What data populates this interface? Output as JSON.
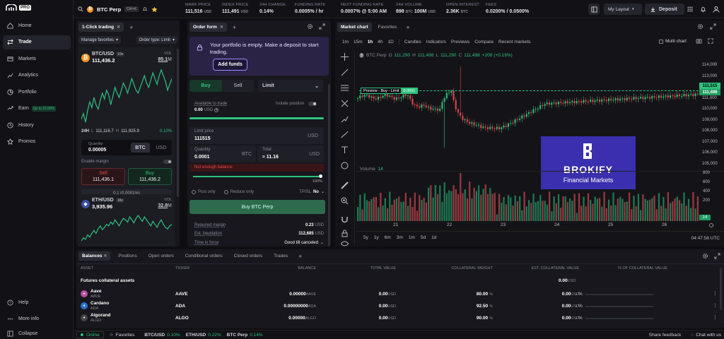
{
  "logo": {
    "badge": "PRO"
  },
  "sidebar": {
    "items": [
      {
        "label": "Home",
        "icon": "home-icon"
      },
      {
        "label": "Trade",
        "icon": "trade-icon"
      },
      {
        "label": "Markets",
        "icon": "markets-icon"
      },
      {
        "label": "Analytics",
        "icon": "analytics-icon"
      },
      {
        "label": "Portfolio",
        "icon": "portfolio-icon"
      },
      {
        "label": "Earn",
        "icon": "earn-icon",
        "badge": "Up to 22.00%"
      },
      {
        "label": "History",
        "icon": "history-icon"
      },
      {
        "label": "Promos",
        "icon": "promos-icon"
      }
    ],
    "bottom": [
      {
        "label": "Help"
      },
      {
        "label": "More info"
      },
      {
        "label": "Collapse"
      }
    ]
  },
  "topbar": {
    "search_label": "BTC Perp",
    "shortcut": "Ctrl+K",
    "mark_price": {
      "label": "MARK PRICE",
      "value": "111,516",
      "unit": "USD"
    },
    "index_price": {
      "label": "INDEX PRICE",
      "value": "111,491",
      "unit": "USD"
    },
    "change": {
      "label": "24H CHANGE",
      "value": "0.14%"
    },
    "funding": {
      "label": "FUNDING RATE",
      "value": "0.0005% / hr"
    },
    "next_funding": {
      "label": "NEXT FUNDING RATE",
      "value": "0.0007% @ 5:00 AM"
    },
    "volume": {
      "label": "24H VOLUME",
      "value": "898",
      "unit": "BTC",
      "value2": "100M",
      "unit2": "USD"
    },
    "open_interest": {
      "label": "OPEN INTEREST",
      "value": "2.36K",
      "unit": "BTC"
    },
    "fees": {
      "label": "FEES",
      "value": "0.0200% / 0.0500%"
    },
    "layout_label": "My Layout",
    "deposit_label": "Deposit"
  },
  "one_click": {
    "tab_label": "1-Click trading",
    "manage": "Manage favorites",
    "order_type": "Order type: Limit",
    "markets": [
      {
        "pair": "BTC/USD",
        "lev": "10x",
        "price": "111,436.2",
        "vol_label": "VOL",
        "vol": "85.1",
        "vol_unit": "M",
        "h24_label": "24H",
        "low_label": "L",
        "low": "111,116.7",
        "high_label": "H",
        "high": "111,925.9",
        "change": "0.10%",
        "spark": [
          40,
          44,
          38,
          46,
          52,
          48,
          55,
          50,
          47,
          53,
          58,
          54,
          60,
          57,
          50,
          56,
          62,
          58,
          55,
          60,
          65,
          62,
          58,
          63,
          68,
          64,
          60,
          58,
          62,
          66,
          70,
          65,
          62,
          67,
          72,
          68,
          64,
          70,
          74,
          70,
          66,
          60,
          64,
          68
        ]
      },
      {
        "pair": "ETH/USD",
        "lev": "10x",
        "price": "3,935.96",
        "vol_label": "VOL",
        "vol": "32.8",
        "vol_unit": "M",
        "spark": [
          30,
          34,
          32,
          38,
          35,
          40,
          44,
          40,
          46,
          50,
          45,
          48,
          52,
          50,
          55,
          52,
          58,
          54,
          50,
          56,
          60,
          58,
          55,
          62,
          58,
          54,
          60,
          64,
          60,
          56,
          62,
          58,
          54,
          50,
          56,
          52,
          48,
          54,
          58,
          52,
          48,
          46,
          50,
          52
        ]
      }
    ],
    "quantity_label": "Quantity",
    "quantity": "0.00005",
    "unit_btc": "BTC",
    "unit_usd": "USD",
    "enable_margin": "Enable margin",
    "sell_label": "Sell",
    "sell_price": "111,436.1",
    "buy_label": "Buy",
    "buy_price": "111,436.2",
    "spread": "0.1 (0.0001%)"
  },
  "order_form": {
    "tab_label": "Order form",
    "notice": "Your portfolio is empty. Make a deposit to start trading.",
    "add_funds": "Add funds",
    "buy": "Buy",
    "sell": "Sell",
    "type": "Limit",
    "available_label": "Available to trade",
    "available": "0.00",
    "available_unit": "USD",
    "isolate": "Isolate position",
    "limit_label": "Limit price",
    "limit_value": "111515",
    "limit_unit": "USD",
    "qty_label": "Quantity",
    "qty_value": "0.0001",
    "qty_unit": "BTC",
    "total_label": "Total",
    "total_value": "≈ 11.16",
    "total_unit": "USD",
    "error": "Not enough balance",
    "slider_pct": "100%",
    "post_only": "Post only",
    "reduce_only": "Reduce only",
    "tpsl": "TP/SL",
    "tpsl_val": "No",
    "submit": "Buy BTC Perp",
    "req_margin_label": "Required margin",
    "req_margin": "0.23",
    "req_margin_unit": "USD",
    "liq_label": "Est. liquidation",
    "liq": "112,685",
    "liq_unit": "USD",
    "tif_label": "Time in force",
    "tif": "Good till canceled"
  },
  "chart": {
    "tab_main": "Market chart",
    "tab_fav": "Favorites",
    "intervals": [
      "1m",
      "15m",
      "1h",
      "4h",
      "1D"
    ],
    "tools": [
      "Candles",
      "Indicators",
      "Previews",
      "Compare",
      "Recent markets"
    ],
    "multi": "Multi chart",
    "legend": {
      "symbol": "BTC Perp",
      "o": "O",
      "ov": "111,290",
      "h": "H",
      "hv": "111,498",
      "l": "L",
      "lv": "111,290",
      "c": "C",
      "cv": "111,498",
      "chg": "+208 (+0.19%)"
    },
    "preview_label": "Preview - Buy - Limit",
    "preview_val": "0.0001",
    "price_ticks": [
      "114,000",
      "113,000",
      "112,000",
      "111,000",
      "110,000",
      "109,000",
      "108,000",
      "107,000",
      "106,000",
      "105,000"
    ],
    "price_tag1": "111,515",
    "price_tag2": "111,498",
    "volume_label": "Volume",
    "volume_val": "14",
    "vol_ticks": [
      "800",
      "600",
      "400",
      "200",
      "14"
    ],
    "date_ticks": [
      "21",
      "22",
      "23",
      "24",
      "25",
      "26"
    ],
    "ranges": [
      "5y",
      "1y",
      "6m",
      "3m",
      "1m",
      "5d",
      "1d"
    ],
    "time": "04:47:58 UTC",
    "ad_title": "BROKIFY",
    "ad_sub": "Financial Markets"
  },
  "balances": {
    "tabs": [
      "Balances",
      "Positions",
      "Open orders",
      "Conditional orders",
      "Closed orders",
      "Trades"
    ],
    "columns": [
      "ASSET",
      "TICKER",
      "BALANCE",
      "TOTAL VALUE",
      "COLLATERAL WEIGHT",
      "EST. COLLATERAL VALUE",
      "% OF COLLATERAL VALUE"
    ],
    "section": "Futures collateral assets",
    "section_total": "0.00",
    "section_unit": "USD",
    "rows": [
      {
        "name": "Aave",
        "sym": "AAVE",
        "ticker": "AAVE",
        "balance": "0.00000",
        "bal_unit": "AAVE",
        "total": "0.00",
        "weight": "80.00",
        "est": "0.00",
        "pct": "- %",
        "color": "#b6509e"
      },
      {
        "name": "Cardano",
        "sym": "ADA",
        "ticker": "ADA",
        "balance": "0.00000000",
        "bal_unit": "ADA",
        "total": "0.00",
        "weight": "92.50",
        "est": "0.00",
        "pct": "- %",
        "color": "#2a71d0"
      },
      {
        "name": "Algorand",
        "sym": "ALGO",
        "ticker": "ALGO",
        "balance": "0.00000",
        "bal_unit": "ALGO",
        "total": "0.00",
        "weight": "90.00",
        "est": "0.00",
        "pct": "- %",
        "color": "#444"
      }
    ],
    "unit": "USD",
    "pct_sign": "%"
  },
  "statusbar": {
    "online": "Online",
    "favorites": "Favorites",
    "tickers": [
      {
        "pair": "BTC/USD",
        "chg": "0.10%"
      },
      {
        "pair": "ETH/USD",
        "chg": "0.22%"
      },
      {
        "pair": "BTC Perp",
        "chg": "0.14%"
      }
    ],
    "feedback": "Share feedback",
    "chat": "Chat with us"
  },
  "colors": {
    "green": "#2ec27e",
    "red": "#e5484d",
    "accent": "#7b61ff"
  }
}
